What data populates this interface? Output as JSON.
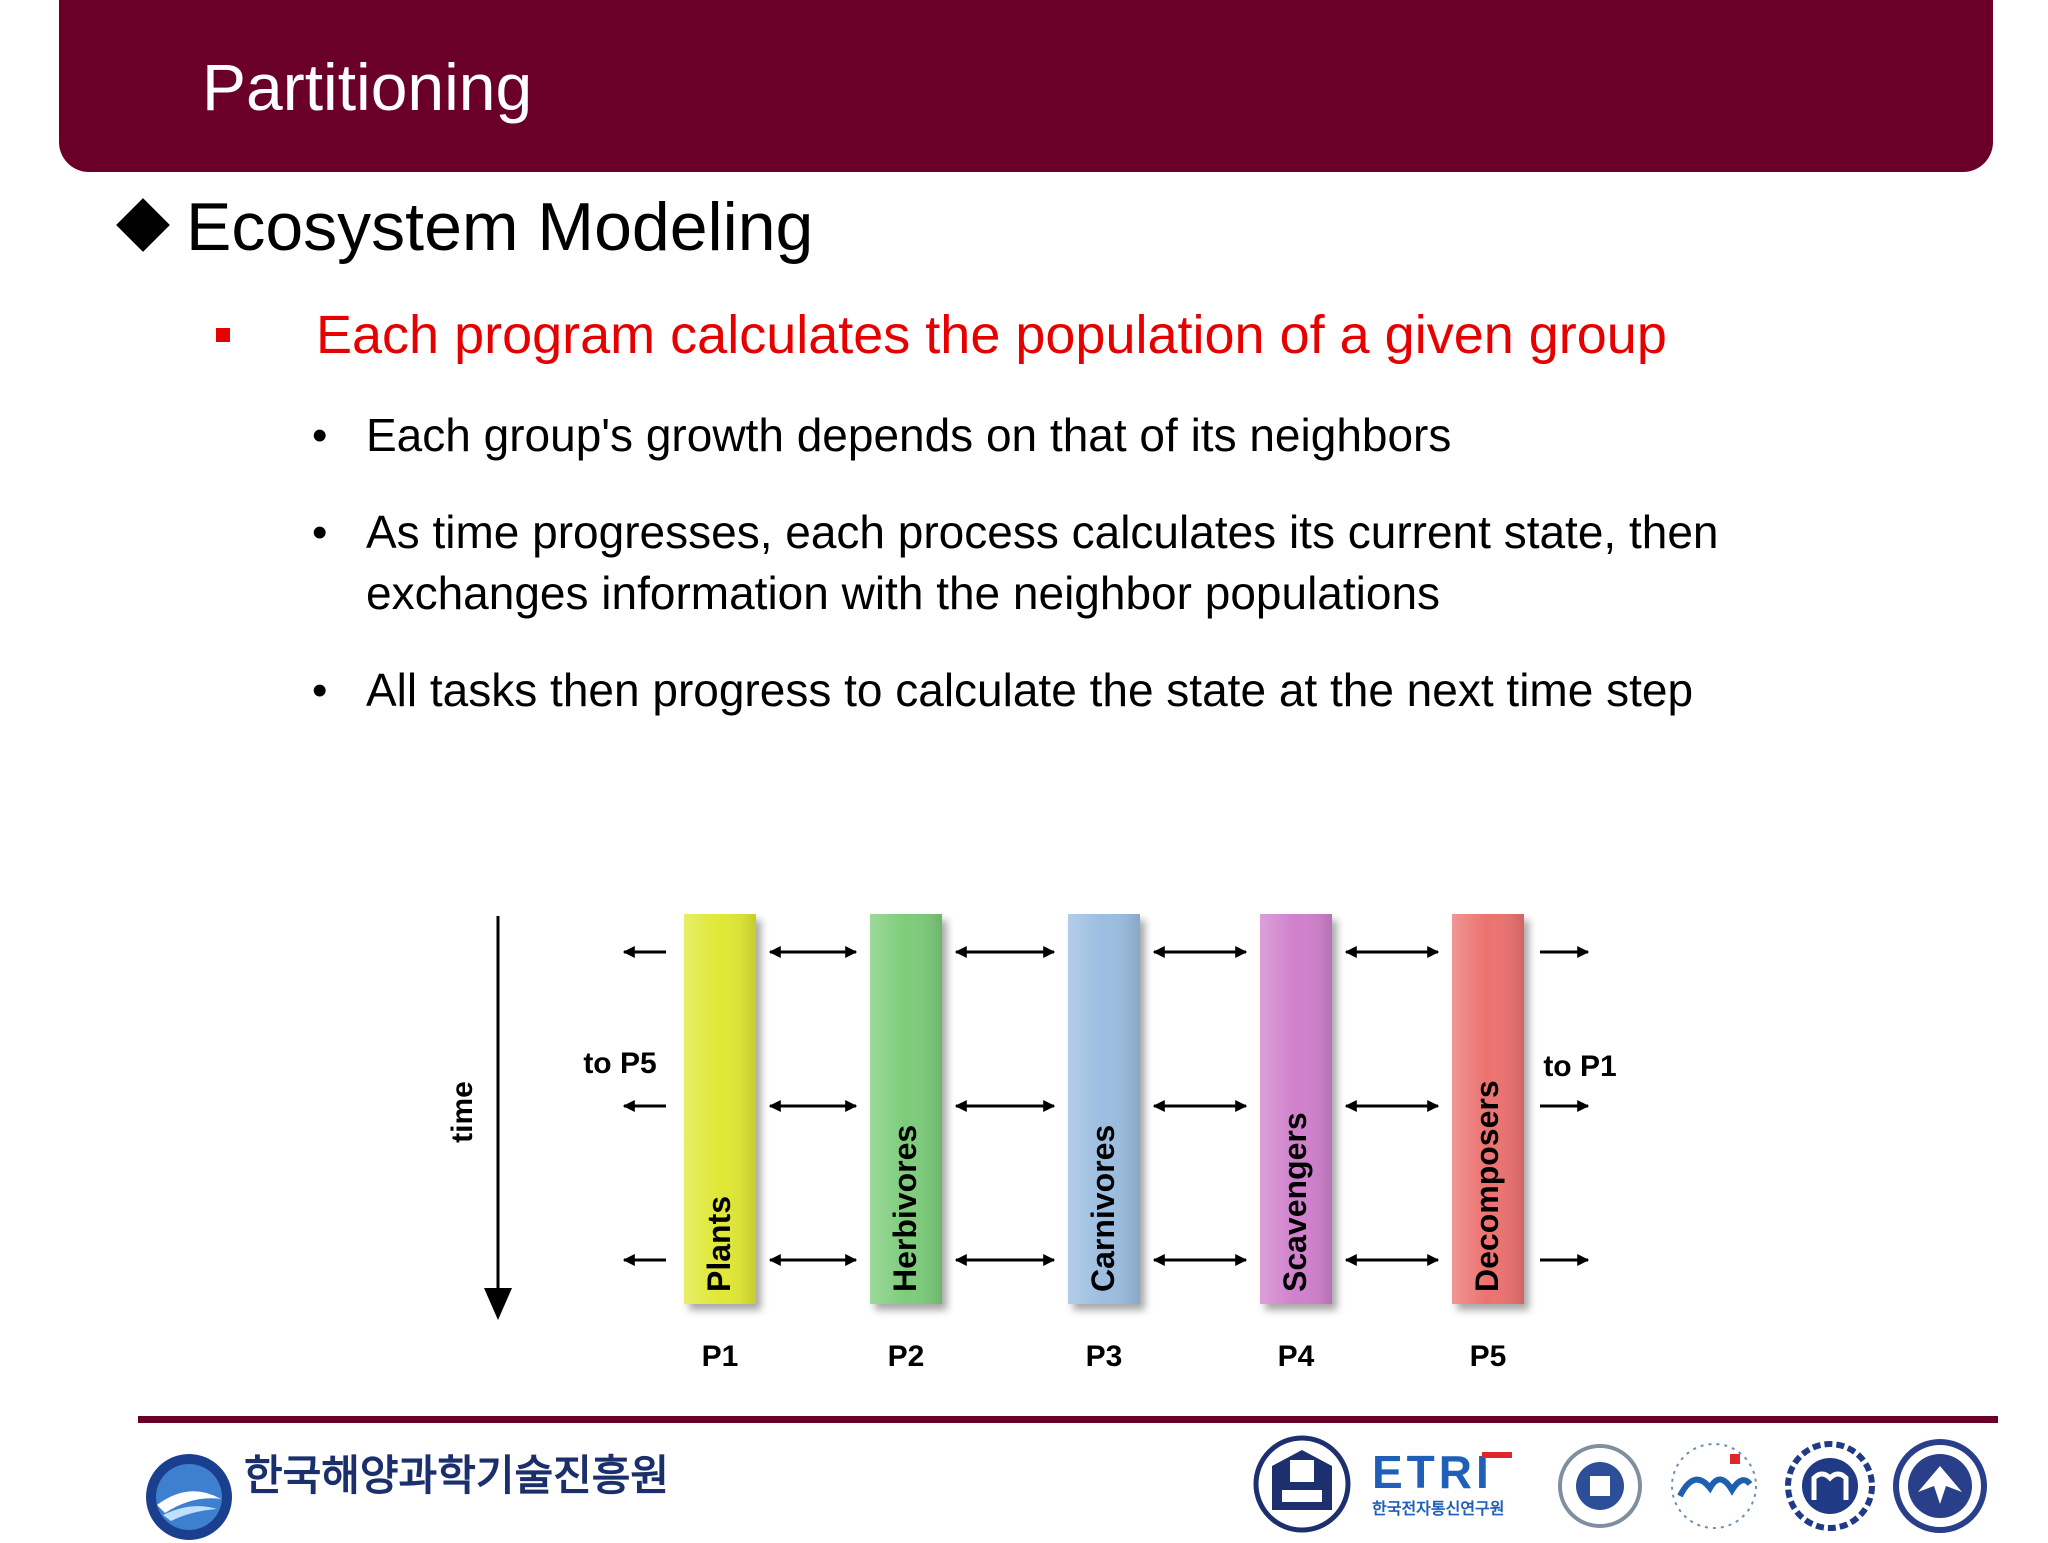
{
  "slide": {
    "title": "Partitioning",
    "heading": "Ecosystem Modeling",
    "red_bullet": "Each program calculates the population of a given group",
    "bullets": [
      "Each group's growth depends on that of its neighbors",
      "As time progresses, each process calculates its current state, then",
      "exchanges information with the neighbor populations",
      "All tasks then progress to calculate the state at the next time step"
    ],
    "bullet_glyph": "•"
  },
  "diagram": {
    "time_label": "time",
    "left_label": "to P5",
    "right_label": "to P1",
    "columns": [
      {
        "name": "Plants",
        "proc": "P1",
        "color": "#dfe835"
      },
      {
        "name": "Herbivores",
        "proc": "P2",
        "color": "#7dcc7a"
      },
      {
        "name": "Carnivores",
        "proc": "P3",
        "color": "#9bbde0"
      },
      {
        "name": "Scavengers",
        "proc": "P4",
        "color": "#d080cc"
      },
      {
        "name": "Decomposers",
        "proc": "P5",
        "color": "#ec7270"
      }
    ]
  },
  "footer": {
    "org_name": "한국해양과학기술진흥원",
    "logos": [
      "kimst-logo",
      "seoul-national-university-seal",
      "etri-logo",
      "inha-university-seal",
      "cau-logo",
      "mju-seal",
      "kau-seal"
    ],
    "etri_text": "ETRI",
    "etri_subtext": "한국전자통신연구원"
  },
  "colors": {
    "title_bar": "#6a0028",
    "accent_red": "#e60000"
  }
}
